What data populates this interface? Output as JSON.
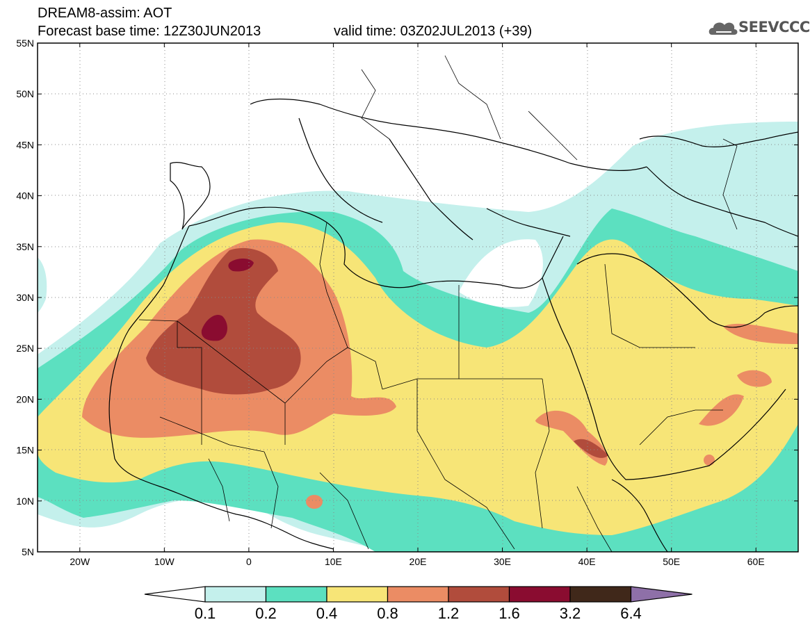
{
  "header": {
    "title": "DREAM8-assim: AOT",
    "base_time": "Forecast base time: 12Z30JUN2013",
    "valid_time": "valid time: 03Z02JUL2013 (+39)"
  },
  "logo": {
    "text": "SEEVCCC",
    "icon": "cloud-icon"
  },
  "axes": {
    "lat_labels": [
      "5N",
      "10N",
      "15N",
      "20N",
      "25N",
      "30N",
      "35N",
      "40N",
      "45N",
      "50N",
      "55N"
    ],
    "lat_values": [
      5,
      10,
      15,
      20,
      25,
      30,
      35,
      40,
      45,
      50,
      55
    ],
    "lon_labels": [
      "20W",
      "10W",
      "0",
      "10E",
      "20E",
      "30E",
      "40E",
      "50E",
      "60E"
    ],
    "lon_values": [
      -20,
      -10,
      0,
      10,
      20,
      30,
      40,
      50,
      60
    ],
    "lon_range": [
      -25,
      65
    ],
    "lat_range": [
      5,
      55
    ]
  },
  "colorbar": {
    "labels": [
      "0.1",
      "0.2",
      "0.4",
      "0.8",
      "1.2",
      "1.6",
      "3.2",
      "6.4"
    ],
    "colors": [
      "#c4f0ec",
      "#5ce0c0",
      "#f7e577",
      "#eb8c64",
      "#b14c3c",
      "#8a0c30",
      "#40281a",
      "#8e70a8"
    ]
  }
}
